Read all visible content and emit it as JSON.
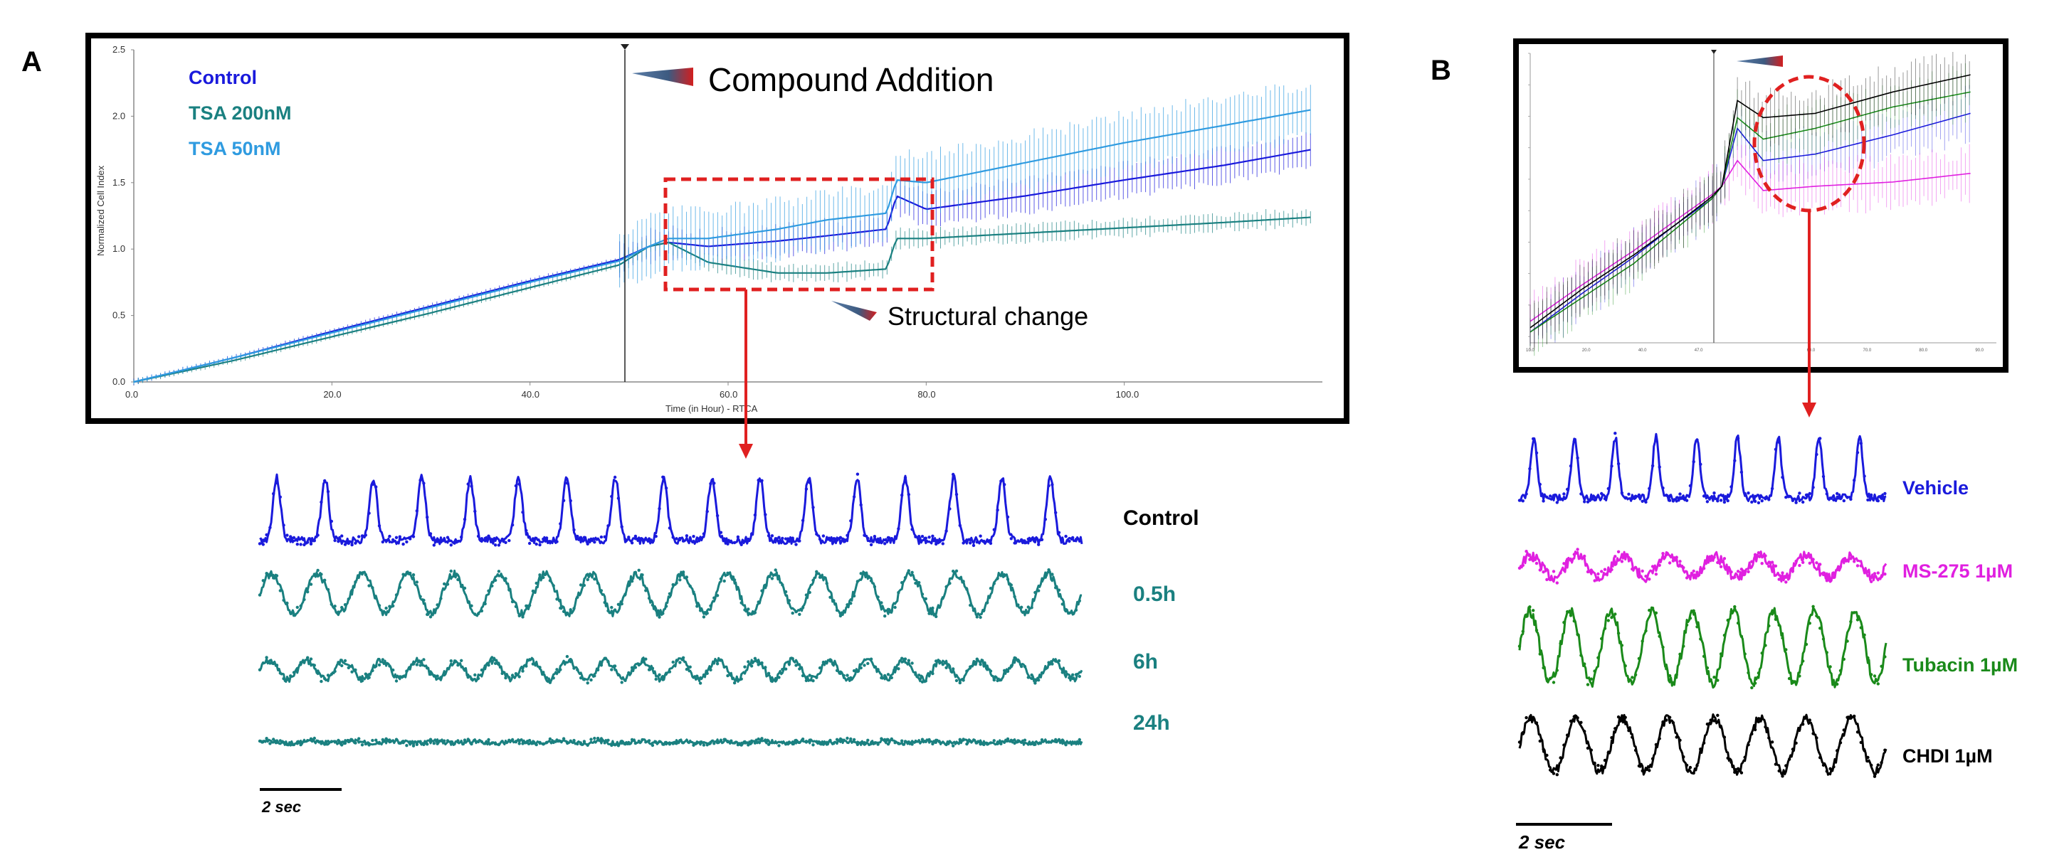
{
  "panel_a": {
    "letter": "A",
    "annotation_compound": "Compound Addition",
    "annotation_structural": "Structural change",
    "trace_labels": [
      "Control",
      "0.5h",
      "6h",
      "24h"
    ],
    "scale_label": "2 sec"
  },
  "panel_b": {
    "letter": "B",
    "trace_labels": [
      "Vehicle",
      "MS-275 1µM",
      "Tubacin 1µM",
      "CHDI 1µM"
    ],
    "scale_label": "2 sec"
  },
  "colors": {
    "control": "#1a1adc",
    "tsa200": "#1a8080",
    "tsa50": "#2f9be0",
    "ms275": "#e020e0",
    "tubacin": "#1a8a1a",
    "chdi": "#000000",
    "highlight": "#e02020"
  },
  "chart_data": [
    {
      "type": "line",
      "title": "",
      "xlabel": "Time (in Hour) - RTCA",
      "ylabel": "Normalized Cell Index",
      "xlim": [
        0,
        120
      ],
      "ylim": [
        0,
        2.5
      ],
      "xticks": [
        "0.0",
        "20.0",
        "40.0",
        "60.0",
        "80.0",
        "100.0"
      ],
      "yticks": [
        "0.0",
        "0.5",
        "1.0",
        "1.5",
        "2.0",
        "2.5"
      ],
      "legend": "top-left",
      "error_bars": true,
      "compound_addition_x": 49,
      "x": [
        0,
        10,
        20,
        30,
        40,
        49,
        52,
        54,
        58,
        65,
        70,
        76,
        77,
        80,
        90,
        100,
        110,
        119
      ],
      "series": [
        {
          "name": "Control",
          "values": [
            0.0,
            0.18,
            0.38,
            0.57,
            0.76,
            0.92,
            1.02,
            1.05,
            1.02,
            1.06,
            1.1,
            1.15,
            1.4,
            1.3,
            1.4,
            1.52,
            1.63,
            1.75
          ]
        },
        {
          "name": "TSA 200nM",
          "values": [
            0.0,
            0.16,
            0.34,
            0.52,
            0.71,
            0.88,
            1.02,
            1.05,
            0.9,
            0.82,
            0.82,
            0.85,
            1.08,
            1.08,
            1.12,
            1.16,
            1.2,
            1.24
          ]
        },
        {
          "name": "TSA 50nM",
          "values": [
            0.0,
            0.18,
            0.37,
            0.56,
            0.75,
            0.91,
            1.02,
            1.08,
            1.08,
            1.15,
            1.22,
            1.27,
            1.52,
            1.5,
            1.65,
            1.8,
            1.93,
            2.05
          ]
        }
      ]
    },
    {
      "type": "line",
      "title": "",
      "xlabel": "",
      "ylabel": "",
      "error_bars": true,
      "x": [
        0,
        10,
        20,
        28,
        35,
        37,
        40,
        45,
        55,
        70,
        85
      ],
      "series": [
        {
          "values": [
            0.0,
            0.18,
            0.35,
            0.5,
            0.62,
            0.68,
            0.95,
            0.8,
            0.83,
            0.92,
            1.02
          ]
        },
        {
          "values": [
            0.05,
            0.22,
            0.38,
            0.52,
            0.64,
            0.68,
            0.8,
            0.66,
            0.68,
            0.7,
            0.74
          ]
        },
        {
          "values": [
            0.0,
            0.16,
            0.32,
            0.48,
            0.62,
            0.68,
            1.0,
            0.9,
            0.95,
            1.05,
            1.12
          ]
        },
        {
          "values": [
            0.02,
            0.2,
            0.36,
            0.5,
            0.63,
            0.68,
            1.08,
            1.0,
            1.02,
            1.12,
            1.2
          ]
        }
      ]
    }
  ]
}
